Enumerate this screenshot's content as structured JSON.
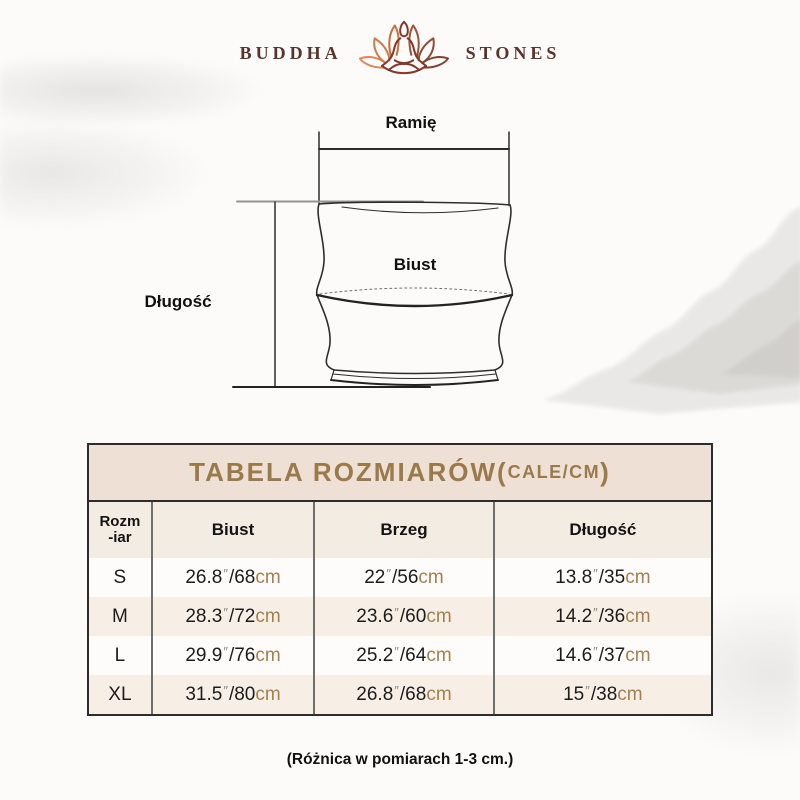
{
  "brand": {
    "word_left": "BUDDHA",
    "word_right": "STONES"
  },
  "diagram": {
    "shoulder_label": "Ramię",
    "bust_label": "Biust",
    "length_label": "Długość"
  },
  "size_table": {
    "title_main": "TABELA ROZMIARÓW(",
    "title_unit": "CALE/CM",
    "title_close": ")",
    "columns": [
      "Rozm\n-iar",
      "Biust",
      "Brzeg",
      "Długość"
    ],
    "unit_inch_mark": "″",
    "separator": "/",
    "unit_cm": "cm",
    "rows": [
      {
        "size": "S",
        "measures": [
          {
            "inch": "26.8",
            "cm": "68"
          },
          {
            "inch": "22",
            "cm": "56"
          },
          {
            "inch": "13.8",
            "cm": "35"
          }
        ]
      },
      {
        "size": "M",
        "measures": [
          {
            "inch": "28.3",
            "cm": "72"
          },
          {
            "inch": "23.6",
            "cm": "60"
          },
          {
            "inch": "14.2",
            "cm": "36"
          }
        ]
      },
      {
        "size": "L",
        "measures": [
          {
            "inch": "29.9",
            "cm": "76"
          },
          {
            "inch": "25.2",
            "cm": "64"
          },
          {
            "inch": "14.6",
            "cm": "37"
          }
        ]
      },
      {
        "size": "XL",
        "measures": [
          {
            "inch": "31.5",
            "cm": "80"
          },
          {
            "inch": "26.8",
            "cm": "68"
          },
          {
            "inch": "15",
            "cm": "38"
          }
        ]
      }
    ]
  },
  "footer": {
    "note": "(Różnica w pomiarach 1-3 cm.)"
  },
  "colors": {
    "brand_maroon": "#5c332a",
    "title_gold": "#9a7a4a",
    "cm_gold": "#a5804d",
    "title_bg": "#eee0d4",
    "header_row_bg": "#f3ece3",
    "alt_row_bg": "#f7efe5",
    "table_border": "#2c2c2c"
  }
}
